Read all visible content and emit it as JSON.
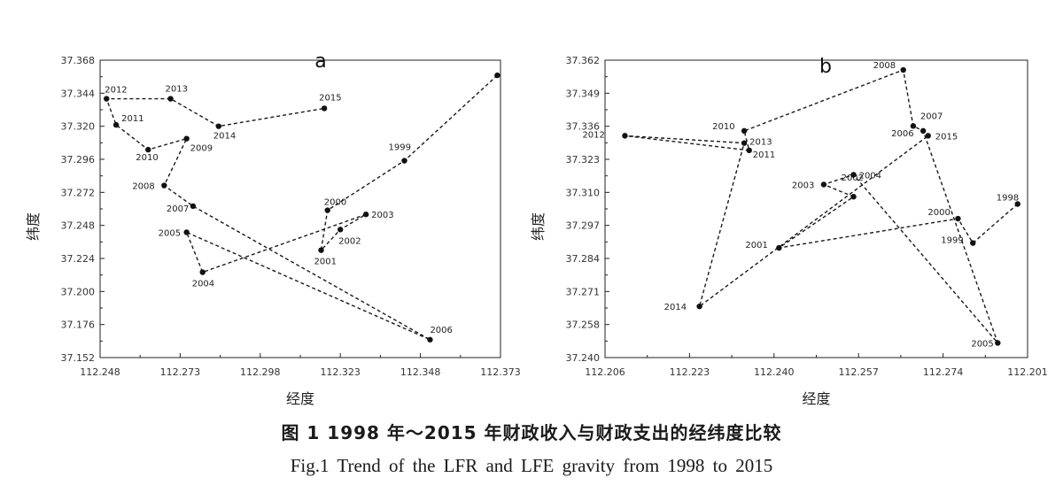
{
  "chart_data": [
    {
      "type": "scatter",
      "title": "a",
      "xlabel": "经度",
      "ylabel": "纬度",
      "xticks": [
        "112.248",
        "112.273",
        "112.298",
        "112.323",
        "112.348",
        "112.373"
      ],
      "yticks": [
        "37.152",
        "37.176",
        "37.200",
        "37.224",
        "37.248",
        "37.272",
        "37.296",
        "37.320",
        "37.344",
        "37.368"
      ],
      "xlim": [
        112.248,
        112.373
      ],
      "ylim": [
        37.152,
        37.368
      ],
      "line_style": "dashed",
      "series": [
        {
          "points": [
            {
              "x": 112.372,
              "y": 37.357,
              "label": ""
            },
            {
              "x": 112.343,
              "y": 37.295,
              "label": "1999"
            },
            {
              "x": 112.319,
              "y": 37.259,
              "label": "2000"
            },
            {
              "x": 112.317,
              "y": 37.23,
              "label": "2001"
            },
            {
              "x": 112.323,
              "y": 37.245,
              "label": "2002"
            },
            {
              "x": 112.331,
              "y": 37.256,
              "label": "2003"
            },
            {
              "x": 112.28,
              "y": 37.214,
              "label": "2004"
            },
            {
              "x": 112.275,
              "y": 37.243,
              "label": "2005"
            },
            {
              "x": 112.351,
              "y": 37.165,
              "label": "2006"
            },
            {
              "x": 112.277,
              "y": 37.262,
              "label": "2007"
            },
            {
              "x": 112.268,
              "y": 37.277,
              "label": "2008"
            },
            {
              "x": 112.275,
              "y": 37.311,
              "label": "2009"
            },
            {
              "x": 112.263,
              "y": 37.303,
              "label": "2010"
            },
            {
              "x": 112.253,
              "y": 37.321,
              "label": "2011"
            },
            {
              "x": 112.25,
              "y": 37.34,
              "label": "2012"
            },
            {
              "x": 112.27,
              "y": 37.34,
              "label": "2013"
            },
            {
              "x": 112.285,
              "y": 37.32,
              "label": "2014"
            },
            {
              "x": 112.318,
              "y": 37.333,
              "label": "2015"
            }
          ]
        }
      ]
    },
    {
      "type": "scatter",
      "title": "b",
      "xlabel": "经度",
      "ylabel": "纬度",
      "xticks": [
        "112.206",
        "112.223",
        "112.240",
        "112.257",
        "112.274",
        "112.201"
      ],
      "yticks": [
        "37.240",
        "37.258",
        "37.271",
        "37.284",
        "37.297",
        "37.310",
        "37.323",
        "37.336",
        "37.349",
        "37.362"
      ],
      "xlim": [
        112.206,
        112.291
      ],
      "ylim": [
        37.24,
        37.362
      ],
      "line_style": "dashed",
      "series": [
        {
          "points": [
            {
              "x": 112.289,
              "y": 37.303,
              "label": "1998"
            },
            {
              "x": 112.28,
              "y": 37.287,
              "label": "1999"
            },
            {
              "x": 112.277,
              "y": 37.297,
              "label": "2000"
            },
            {
              "x": 112.241,
              "y": 37.285,
              "label": "2001"
            },
            {
              "x": 112.256,
              "y": 37.306,
              "label": "2002"
            },
            {
              "x": 112.25,
              "y": 37.311,
              "label": "2003"
            },
            {
              "x": 112.256,
              "y": 37.315,
              "label": "2004"
            },
            {
              "x": 112.285,
              "y": 37.246,
              "label": "2005"
            },
            {
              "x": 112.27,
              "y": 37.333,
              "label": "2006"
            },
            {
              "x": 112.268,
              "y": 37.335,
              "label": "2007"
            },
            {
              "x": 112.266,
              "y": 37.358,
              "label": "2008"
            },
            {
              "x": 112.234,
              "y": 37.333,
              "label": "2010"
            },
            {
              "x": 112.235,
              "y": 37.325,
              "label": "2011"
            },
            {
              "x": 112.21,
              "y": 37.331,
              "label": "2012"
            },
            {
              "x": 112.234,
              "y": 37.328,
              "label": "2013"
            },
            {
              "x": 112.225,
              "y": 37.261,
              "label": "2014"
            },
            {
              "x": 112.271,
              "y": 37.331,
              "label": "2015"
            }
          ]
        }
      ]
    }
  ],
  "caption_cn": "图 1  1998 年～2015 年财政收入与财政支出的经纬度比较",
  "caption_en": "Fig.1   Trend of the LFR and LFE gravity from 1998 to 2015"
}
